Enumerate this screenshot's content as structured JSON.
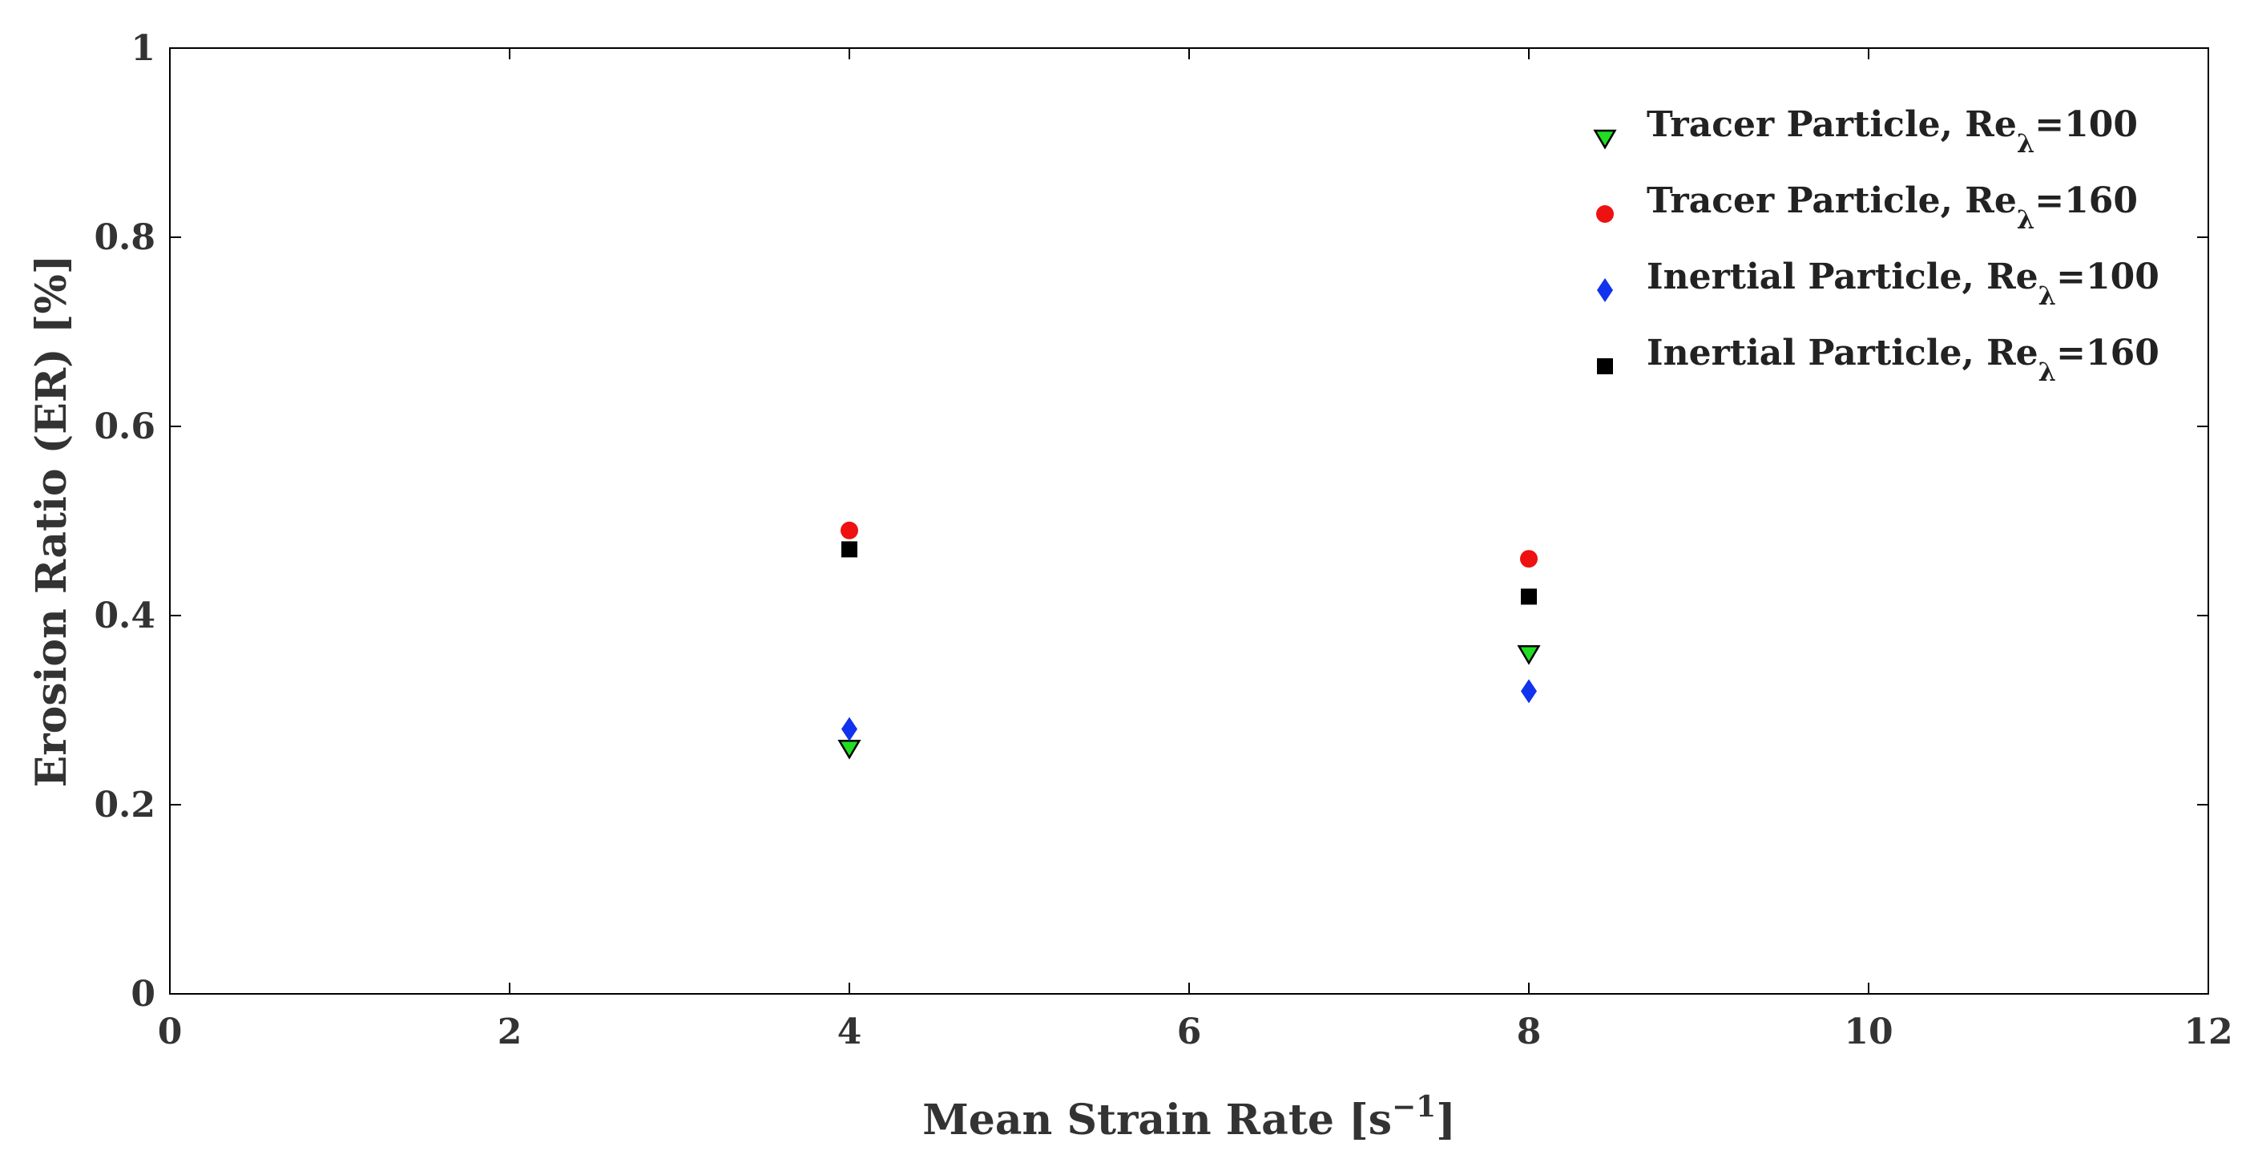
{
  "chart_data": {
    "type": "scatter",
    "xlabel": "Mean Strain Rate [s−1]",
    "xlabel_main": "Mean Strain Rate [s",
    "xlabel_sup": "−1",
    "xlabel_close": "]",
    "ylabel": "Erosion Ratio (ER) [%]",
    "xlim": [
      0,
      12
    ],
    "ylim": [
      0,
      1
    ],
    "xticks": [
      0,
      2,
      4,
      6,
      8,
      10,
      12
    ],
    "xtick_labels": [
      "0",
      "2",
      "4",
      "6",
      "8",
      "10",
      "12"
    ],
    "yticks": [
      0,
      0.2,
      0.4,
      0.6,
      0.8,
      1
    ],
    "ytick_labels": [
      "0",
      "0.2",
      "0.4",
      "0.6",
      "0.8",
      "1"
    ],
    "grid": false,
    "legend_position": "top-right",
    "series": [
      {
        "name": "Tracer Particle, Reλ=100",
        "name_main": "Tracer Particle, Re",
        "name_sub": "λ",
        "name_tail": "=100",
        "marker": "triangle-down",
        "color": "#22dd22",
        "x": [
          4,
          8
        ],
        "y": [
          0.26,
          0.36
        ]
      },
      {
        "name": "Tracer Particle, Reλ=160",
        "name_main": "Tracer Particle, Re",
        "name_sub": "λ",
        "name_tail": "=160",
        "marker": "circle",
        "color": "#ee1111",
        "x": [
          4,
          8
        ],
        "y": [
          0.49,
          0.46
        ]
      },
      {
        "name": "Inertial Particle, Reλ=100",
        "name_main": "Inertial Particle, Re",
        "name_sub": "λ",
        "name_tail": "=100",
        "marker": "diamond",
        "color": "#1133ee",
        "x": [
          4,
          8
        ],
        "y": [
          0.28,
          0.32
        ]
      },
      {
        "name": "Inertial Particle, Reλ=160",
        "name_main": "Inertial Particle, Re",
        "name_sub": "λ",
        "name_tail": "=160",
        "marker": "square",
        "color": "#000000",
        "x": [
          4,
          8
        ],
        "y": [
          0.47,
          0.42
        ]
      }
    ]
  }
}
